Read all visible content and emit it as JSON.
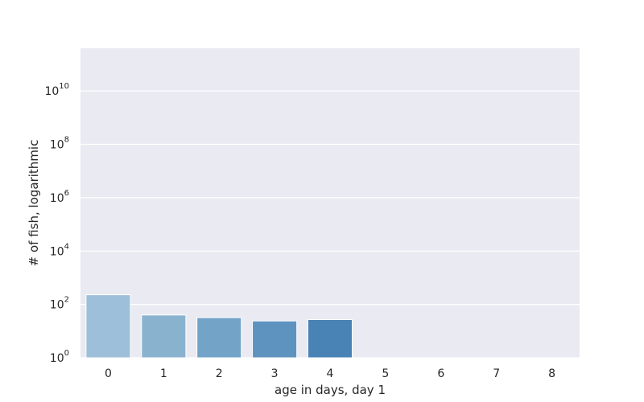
{
  "chart_data": {
    "type": "bar",
    "title": "",
    "xlabel": "age in days, day 1",
    "ylabel": "# of fish, logarithmic",
    "y_scale": "log",
    "ylim": [
      1,
      400000000000
    ],
    "y_ticks": [
      {
        "value": 1,
        "base": "10",
        "exp": "0"
      },
      {
        "value": 100,
        "base": "10",
        "exp": "2"
      },
      {
        "value": 10000,
        "base": "10",
        "exp": "4"
      },
      {
        "value": 1000000,
        "base": "10",
        "exp": "6"
      },
      {
        "value": 100000000,
        "base": "10",
        "exp": "8"
      },
      {
        "value": 10000000000,
        "base": "10",
        "exp": "10"
      }
    ],
    "categories": [
      "0",
      "1",
      "2",
      "3",
      "4",
      "5",
      "6",
      "7",
      "8"
    ],
    "values": [
      230,
      40,
      32,
      24,
      27,
      0,
      0,
      0,
      0
    ],
    "bar_colors": [
      "#9ebfd9",
      "#89b2cf",
      "#73a3c7",
      "#5e93bf",
      "#4983b6",
      "#3a73aa",
      "#2f649c",
      "#26568c",
      "#1e487b"
    ],
    "grid": true,
    "legend": "none",
    "colors": {
      "background": "#eaeaf2",
      "grid": "#ffffff",
      "text": "#262626"
    }
  }
}
